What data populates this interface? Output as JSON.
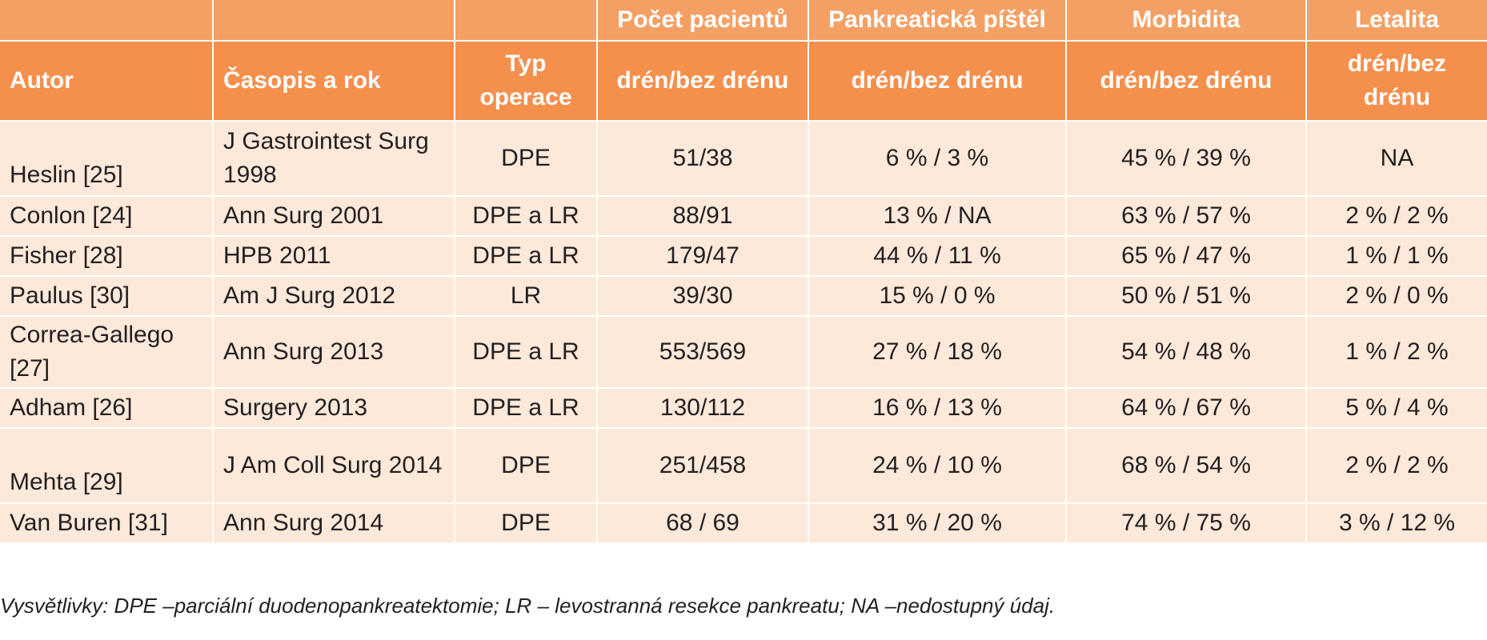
{
  "table": {
    "group_headers": {
      "col1": "",
      "col2": "",
      "col3": "",
      "patients": "Počet pacientů",
      "fistula": "Pankreatická píštěl",
      "morbidity": "Morbidita",
      "lethality": "Letalita"
    },
    "column_headers": {
      "author": "Autor",
      "journal": "Časopis a rok",
      "operation_type": "Typ operace",
      "patients": "drén/bez drénu",
      "fistula": "drén/bez drénu",
      "morbidity": "drén/bez drénu",
      "lethality": "drén/bez drénu"
    },
    "rows": [
      {
        "author": "Heslin [25]",
        "journal": "J Gastrointest Surg 1998",
        "operation": "DPE",
        "patients": "51/38",
        "fistula": "6 % / 3 %",
        "morbidity": "45 % / 39 %",
        "lethality": "NA"
      },
      {
        "author": "Conlon [24]",
        "journal": "Ann Surg 2001",
        "operation": "DPE a LR",
        "patients": "88/91",
        "fistula": "13 % / NA",
        "morbidity": "63 % / 57 %",
        "lethality": "2 % / 2 %"
      },
      {
        "author": "Fisher [28]",
        "journal": "HPB 2011",
        "operation": "DPE a LR",
        "patients": "179/47",
        "fistula": "44 % / 11 %",
        "morbidity": "65 % / 47 %",
        "lethality": "1 % / 1 %"
      },
      {
        "author": "Paulus [30]",
        "journal": "Am J Surg 2012",
        "operation": "LR",
        "patients": "39/30",
        "fistula": "15 % / 0 %",
        "morbidity": "50 % / 51 %",
        "lethality": "2 % / 0 %"
      },
      {
        "author": "Correa-Gallego [27]",
        "journal": "Ann Surg 2013",
        "operation": "DPE a LR",
        "patients": "553/569",
        "fistula": "27 % / 18 %",
        "morbidity": "54 % / 48 %",
        "lethality": "1 % / 2 %"
      },
      {
        "author": "Adham [26]",
        "journal": "Surgery 2013",
        "operation": "DPE a LR",
        "patients": "130/112",
        "fistula": "16 % / 13 %",
        "morbidity": "64 % / 67 %",
        "lethality": "5 % / 4 %"
      },
      {
        "author": "Mehta [29]",
        "journal": "J Am Coll Surg 2014",
        "operation": "DPE",
        "patients": "251/458",
        "fistula": "24 % / 10 %",
        "morbidity": "68 % / 54 %",
        "lethality": "2 % / 2 %"
      },
      {
        "author": "Van Buren [31]",
        "journal": "Ann Surg 2014",
        "operation": "DPE",
        "patients": "68 / 69",
        "fistula": "31 % / 20 %",
        "morbidity": "74 % / 75 %",
        "lethality": "3 % / 12 %"
      }
    ]
  },
  "footnote": "Vysvětlivky: DPE  –parciální duodenopankreatektomie;  LR – levostranná resekce pankreatu;  NA –nedostupný údaj.",
  "colors": {
    "header_top": "#f4a064",
    "header_main": "#f58f4c",
    "row_background": "#fde9da",
    "header_text": "#ffffff"
  }
}
